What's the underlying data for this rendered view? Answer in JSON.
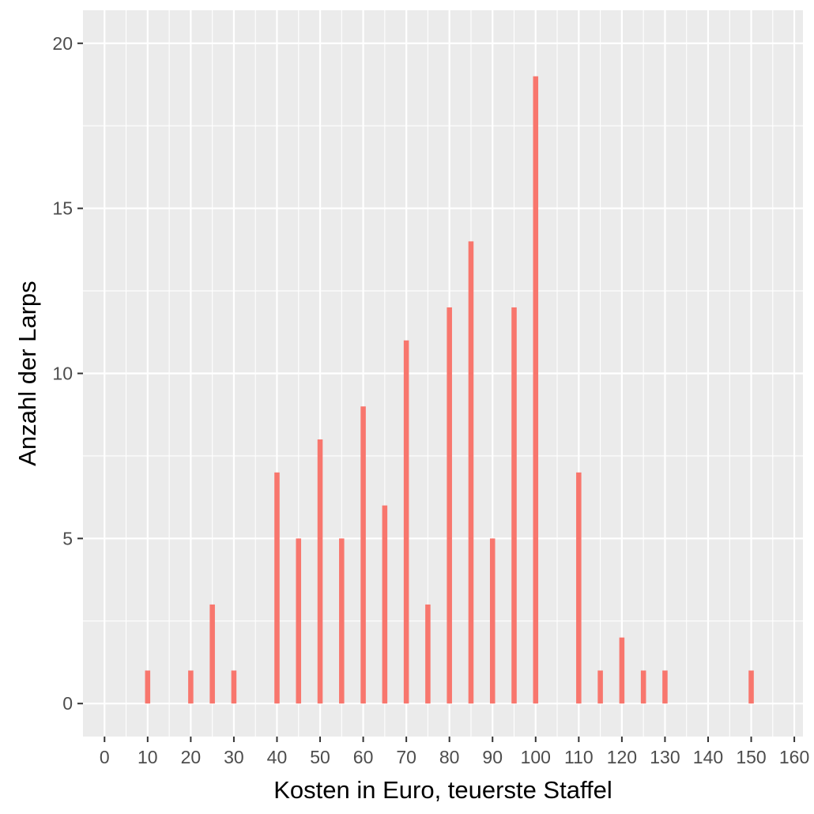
{
  "chart_data": {
    "type": "bar",
    "title": "",
    "xlabel": "Kosten in Euro, teuerste Staffel",
    "ylabel": "Anzahl der Larps",
    "xlim": [
      -5,
      162
    ],
    "ylim": [
      -1,
      21
    ],
    "x_ticks": [
      0,
      10,
      20,
      30,
      40,
      50,
      60,
      70,
      80,
      90,
      100,
      110,
      120,
      130,
      140,
      150,
      160
    ],
    "x_tick_labels": [
      "0",
      "10",
      "20",
      "30",
      "40",
      "50",
      "60",
      "70",
      "80",
      "90",
      "100",
      "110",
      "120",
      "130",
      "140",
      "150",
      "160"
    ],
    "y_ticks": [
      0,
      5,
      10,
      15,
      20
    ],
    "y_tick_labels": [
      "0",
      "5",
      "10",
      "15",
      "20"
    ],
    "grid": true,
    "bar_color": "#F8766D",
    "panel_background": "#EBEBEB",
    "grid_color": "#FFFFFF",
    "x": [
      10,
      20,
      25,
      30,
      40,
      45,
      50,
      55,
      60,
      65,
      70,
      75,
      80,
      85,
      90,
      95,
      100,
      110,
      115,
      120,
      125,
      130,
      150
    ],
    "values": [
      1,
      1,
      3,
      1,
      7,
      5,
      8,
      5,
      9,
      6,
      11,
      3,
      12,
      14,
      5,
      12,
      19,
      7,
      1,
      2,
      1,
      1,
      1
    ]
  }
}
